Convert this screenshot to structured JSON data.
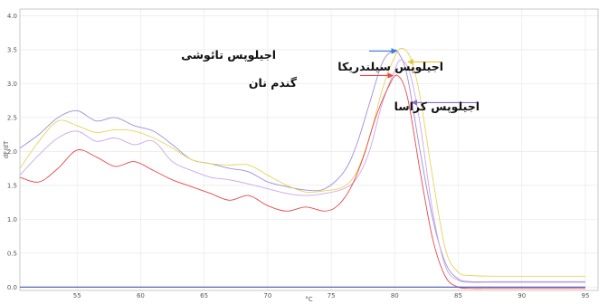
{
  "chart_data": {
    "type": "line",
    "xlabel": "°C",
    "ylabel": "dF/dT",
    "xlim": [
      50.5,
      96
    ],
    "ylim": [
      -0.05,
      4.1
    ],
    "x_ticks": [
      "55",
      "60",
      "65",
      "70",
      "75",
      "80",
      "85",
      "90",
      "95"
    ],
    "y_ticks": [
      "0.0",
      "0.5",
      "1.0",
      "1.5",
      "2.0",
      "2.5",
      "3.0",
      "3.5",
      "4.0"
    ],
    "grid": true,
    "series": [
      {
        "color": "#9b8fd8",
        "x": [
          50.5,
          52,
          53.5,
          55,
          56.5,
          58,
          59.5,
          61,
          62.5,
          64,
          65.5,
          67,
          68.5,
          70,
          71.5,
          73,
          74.5,
          76,
          77,
          78,
          79,
          79.8,
          80.3,
          81,
          82,
          83,
          84,
          85,
          86,
          88,
          92,
          95
        ],
        "values": [
          2.05,
          2.25,
          2.5,
          2.6,
          2.45,
          2.5,
          2.38,
          2.3,
          2.1,
          1.88,
          1.82,
          1.75,
          1.7,
          1.55,
          1.48,
          1.43,
          1.45,
          1.7,
          2.1,
          2.7,
          3.3,
          3.48,
          3.45,
          3.1,
          2.0,
          1.0,
          0.35,
          0.12,
          0.08,
          0.08,
          0.08,
          0.08
        ]
      },
      {
        "color": "#e6d35a",
        "x": [
          50.5,
          52,
          53.5,
          55,
          56.5,
          58,
          59.5,
          61,
          62.5,
          64,
          65.5,
          67,
          68.5,
          70,
          71.5,
          73,
          74.5,
          76,
          77,
          78,
          79,
          80,
          80.6,
          81.3,
          82,
          83,
          84,
          85,
          86,
          88,
          92,
          95
        ],
        "values": [
          1.75,
          2.15,
          2.45,
          2.38,
          2.28,
          2.32,
          2.3,
          2.2,
          2.05,
          1.88,
          1.82,
          1.8,
          1.8,
          1.65,
          1.5,
          1.4,
          1.42,
          1.48,
          1.7,
          2.2,
          2.9,
          3.4,
          3.52,
          3.35,
          2.8,
          1.6,
          0.55,
          0.22,
          0.17,
          0.16,
          0.16,
          0.16
        ]
      },
      {
        "color": "#c9a8e8",
        "x": [
          50.5,
          52,
          53.5,
          55,
          56.5,
          58,
          59.5,
          61,
          62.5,
          64,
          65.5,
          67,
          68.5,
          70,
          71.5,
          73,
          74.5,
          76,
          77,
          78,
          79,
          80,
          80.5,
          81.2,
          82,
          83,
          84,
          85,
          86,
          88,
          92,
          95
        ],
        "values": [
          1.65,
          1.95,
          2.2,
          2.3,
          2.15,
          2.2,
          2.1,
          2.15,
          1.85,
          1.72,
          1.62,
          1.58,
          1.52,
          1.45,
          1.38,
          1.35,
          1.38,
          1.45,
          1.6,
          2.0,
          2.7,
          3.2,
          3.35,
          3.15,
          2.4,
          1.1,
          0.3,
          0.1,
          0.07,
          0.07,
          0.07,
          0.07
        ]
      },
      {
        "color": "#e8474a",
        "x": [
          50.5,
          52,
          53.5,
          55,
          56.5,
          58,
          59.5,
          61,
          62.5,
          64,
          65.5,
          67,
          68.5,
          70,
          71.5,
          73,
          74.5,
          75.5,
          76.5,
          77.5,
          78.5,
          79.5,
          80.2,
          81,
          82,
          83,
          84,
          85,
          86,
          88,
          92,
          95
        ],
        "values": [
          1.62,
          1.55,
          1.75,
          2.02,
          1.92,
          1.78,
          1.85,
          1.72,
          1.58,
          1.48,
          1.38,
          1.28,
          1.35,
          1.2,
          1.12,
          1.18,
          1.12,
          1.2,
          1.45,
          1.9,
          2.5,
          2.95,
          3.12,
          2.8,
          1.7,
          0.7,
          0.15,
          0.0,
          -0.02,
          -0.02,
          -0.02,
          -0.02
        ]
      },
      {
        "color": "#4455bb",
        "x": [
          50.5,
          95
        ],
        "values": [
          0.0,
          0.0
        ]
      }
    ],
    "annotations": [
      {
        "text": "اجیلوپس تائوشی",
        "color": "#3a7fd5",
        "point_x": 80.3,
        "point_y": 3.48
      },
      {
        "text": "اجیلوپس سیلندریکا",
        "color": "#e3c63a",
        "point_x": 80.9,
        "point_y": 3.32
      },
      {
        "text": "گندم نان",
        "color": "#e8474a",
        "point_x": 80.0,
        "point_y": 3.12
      },
      {
        "text": "اجیلوپس کراسا",
        "color": "#8d6bc9",
        "point_x": 81.2,
        "point_y": 2.72
      }
    ]
  }
}
